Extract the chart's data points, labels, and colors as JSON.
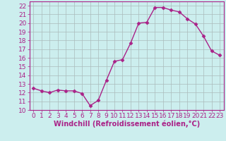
{
  "x": [
    0,
    1,
    2,
    3,
    4,
    5,
    6,
    7,
    8,
    9,
    10,
    11,
    12,
    13,
    14,
    15,
    16,
    17,
    18,
    19,
    20,
    21,
    22,
    23
  ],
  "y": [
    12.5,
    12.2,
    12.0,
    12.3,
    12.2,
    12.2,
    11.9,
    10.5,
    11.1,
    13.4,
    15.6,
    15.8,
    17.7,
    20.0,
    20.1,
    21.8,
    21.8,
    21.5,
    21.3,
    20.5,
    19.9,
    18.5,
    16.8,
    16.3
  ],
  "line_color": "#aa2288",
  "marker": "D",
  "marker_size": 2.5,
  "bg_color": "#cceeee",
  "grid_color": "#aabbbb",
  "xlabel": "Windchill (Refroidissement éolien,°C)",
  "xlim": [
    -0.5,
    23.5
  ],
  "ylim": [
    10,
    22.5
  ],
  "yticks": [
    10,
    11,
    12,
    13,
    14,
    15,
    16,
    17,
    18,
    19,
    20,
    21,
    22
  ],
  "xticks": [
    0,
    1,
    2,
    3,
    4,
    5,
    6,
    7,
    8,
    9,
    10,
    11,
    12,
    13,
    14,
    15,
    16,
    17,
    18,
    19,
    20,
    21,
    22,
    23
  ],
  "tick_color": "#aa2288",
  "tick_fontsize": 6.5,
  "xlabel_fontsize": 7,
  "line_width": 1.0
}
